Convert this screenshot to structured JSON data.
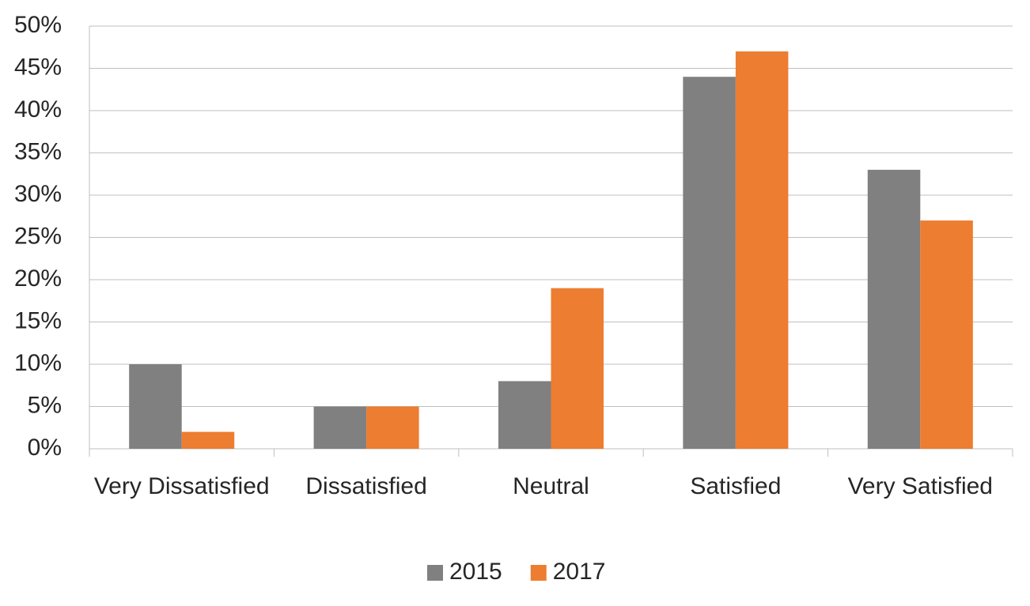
{
  "chart_data": {
    "type": "bar",
    "categories": [
      "Very Dissatisfied",
      "Dissatisfied",
      "Neutral",
      "Satisfied",
      "Very Satisfied"
    ],
    "series": [
      {
        "name": "2015",
        "color": "#808080",
        "values": [
          10,
          5,
          8,
          44,
          33
        ]
      },
      {
        "name": "2017",
        "color": "#ed7d31",
        "values": [
          2,
          5,
          19,
          47,
          27
        ]
      }
    ],
    "ylim": [
      0,
      50
    ],
    "yticks": [
      {
        "value": 0,
        "label": "0%"
      },
      {
        "value": 5,
        "label": "5%"
      },
      {
        "value": 10,
        "label": "10%"
      },
      {
        "value": 15,
        "label": "15%"
      },
      {
        "value": 20,
        "label": "20%"
      },
      {
        "value": 25,
        "label": "25%"
      },
      {
        "value": 30,
        "label": "30%"
      },
      {
        "value": 35,
        "label": "35%"
      },
      {
        "value": 40,
        "label": "40%"
      },
      {
        "value": 45,
        "label": "45%"
      },
      {
        "value": 50,
        "label": "50%"
      }
    ],
    "grid": true,
    "legend": "bottom"
  }
}
